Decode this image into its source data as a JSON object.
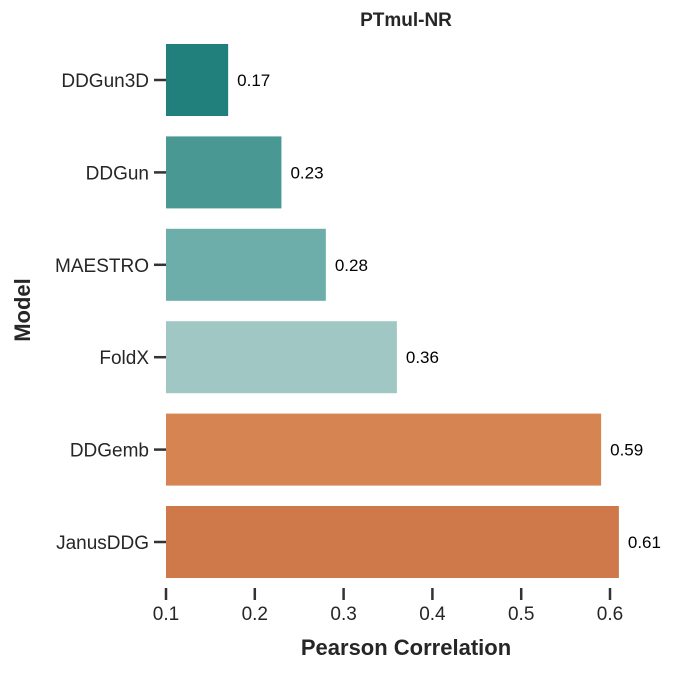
{
  "chart_data": {
    "type": "bar",
    "orientation": "horizontal",
    "title": "PTmul-NR",
    "xlabel": "Pearson Correlation",
    "ylabel": "Model",
    "xlim": [
      0.1,
      0.61
    ],
    "xticks": [
      "0.1",
      "0.2",
      "0.3",
      "0.4",
      "0.5",
      "0.6"
    ],
    "categories": [
      "DDGun3D",
      "DDGun",
      "MAESTRO",
      "FoldX",
      "DDGemb",
      "JanusDDG"
    ],
    "values": [
      0.17,
      0.23,
      0.28,
      0.36,
      0.59,
      0.61
    ],
    "value_labels": [
      "0.17",
      "0.23",
      "0.28",
      "0.36",
      "0.59",
      "0.61"
    ],
    "colors": [
      "#21807c",
      "#4a9894",
      "#6dadaa",
      "#a0c7c4",
      "#d68452",
      "#cf794b"
    ],
    "grid": false
  }
}
